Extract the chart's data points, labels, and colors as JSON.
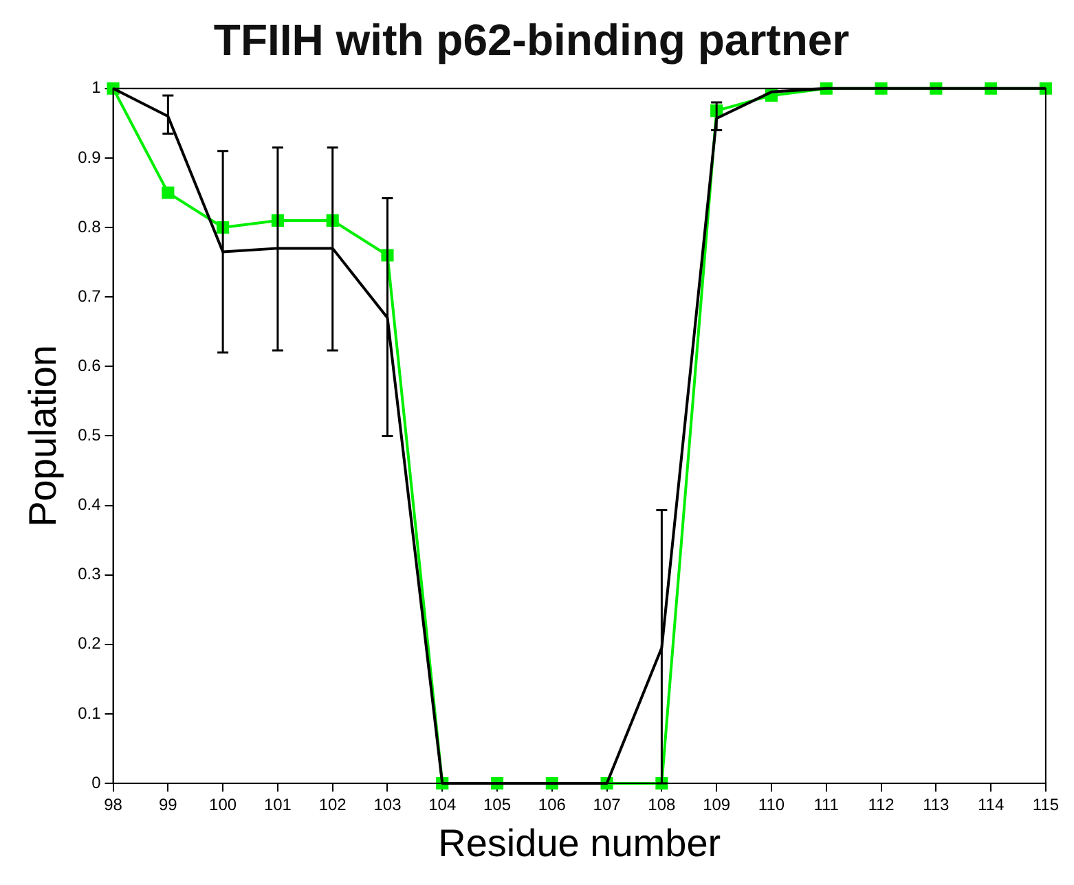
{
  "chart_data": {
    "type": "line",
    "title": "TFIIH with p62-binding partner",
    "xlabel": "Residue number",
    "ylabel": "Population",
    "x": [
      98,
      99,
      100,
      101,
      102,
      103,
      104,
      105,
      106,
      107,
      108,
      109,
      110,
      111,
      112,
      113,
      114,
      115
    ],
    "series": [
      {
        "color": "#000000",
        "marker": "none",
        "values": [
          1,
          0.96,
          0.765,
          0.77,
          0.77,
          0.67,
          0,
          0,
          0,
          0,
          0.195,
          0.957,
          0.995,
          1,
          1,
          1,
          1,
          1
        ],
        "errors": [
          null,
          [
            0.935,
            0.99
          ],
          [
            0.62,
            0.91
          ],
          [
            0.623,
            0.915
          ],
          [
            0.623,
            0.915
          ],
          [
            0.5,
            0.842
          ],
          null,
          null,
          null,
          null,
          [
            0,
            0.393
          ],
          [
            0.94,
            0.98
          ],
          null,
          null,
          null,
          null,
          null,
          null
        ]
      },
      {
        "color": "#00ee00",
        "marker": "square",
        "values": [
          1,
          0.85,
          0.8,
          0.81,
          0.81,
          0.76,
          0,
          0,
          0,
          0,
          0,
          0.968,
          0.99,
          1,
          1,
          1,
          1,
          1
        ]
      }
    ],
    "xlim": [
      98,
      115
    ],
    "xticks": [
      98,
      99,
      100,
      101,
      102,
      103,
      104,
      105,
      106,
      107,
      108,
      109,
      110,
      111,
      112,
      113,
      114,
      115
    ],
    "ylim": [
      0,
      1
    ],
    "yticks": [
      0,
      0.1,
      0.2,
      0.3,
      0.4,
      0.5,
      0.6,
      0.7,
      0.8,
      0.9,
      1
    ],
    "grid": false,
    "legend": false,
    "line_style": "solid"
  }
}
